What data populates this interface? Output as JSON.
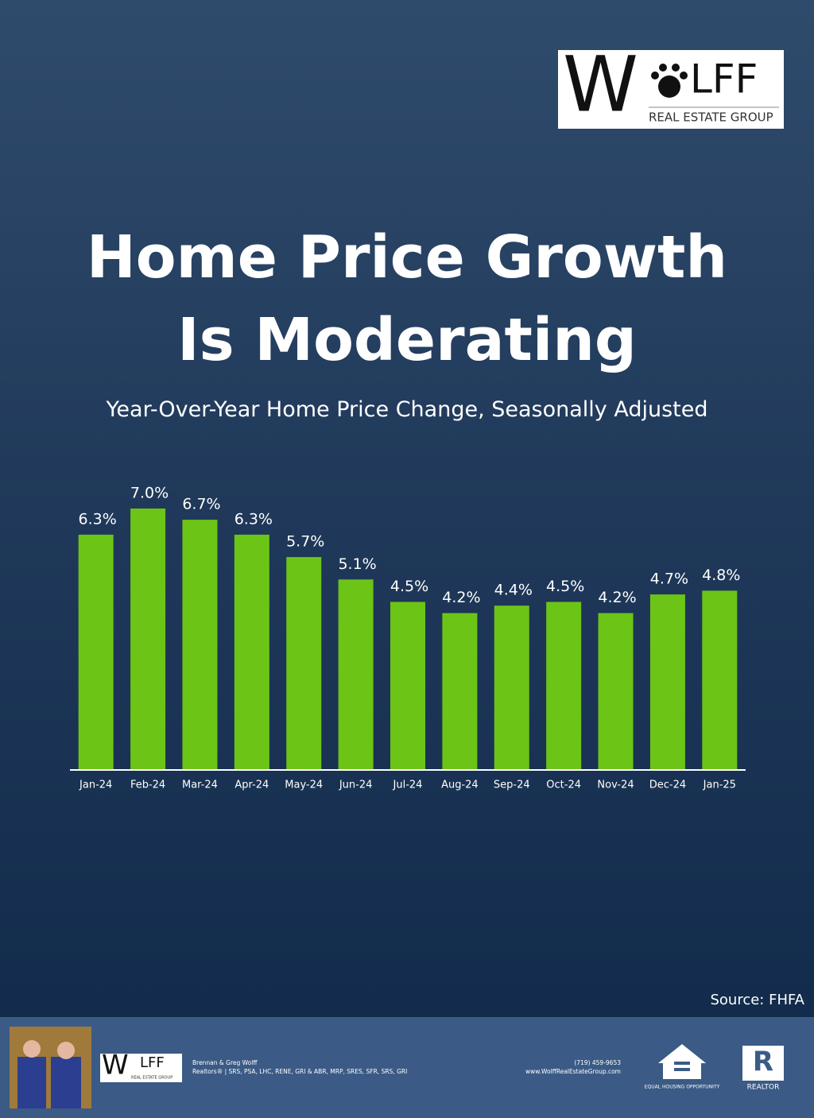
{
  "chart_data": {
    "type": "bar",
    "title": "Home Price Growth Is Moderating",
    "subtitle": "Year-Over-Year Home Price Change, Seasonally Adjusted",
    "categories": [
      "Jan-24",
      "Feb-24",
      "Mar-24",
      "Apr-24",
      "May-24",
      "Jun-24",
      "Jul-24",
      "Aug-24",
      "Sep-24",
      "Oct-24",
      "Nov-24",
      "Dec-24",
      "Jan-25"
    ],
    "values": [
      6.3,
      7.0,
      6.7,
      6.3,
      5.7,
      5.1,
      4.5,
      4.2,
      4.4,
      4.5,
      4.2,
      4.7,
      4.8
    ],
    "value_labels": [
      "6.3%",
      "7.0%",
      "6.7%",
      "6.3%",
      "5.7%",
      "5.1%",
      "4.5%",
      "4.2%",
      "4.4%",
      "4.5%",
      "4.2%",
      "4.7%",
      "4.8%"
    ],
    "color": "#6cc417",
    "source": "Source: FHFA"
  },
  "logo": {
    "first": "W",
    "rest": "LFF",
    "tagline": "REAL ESTATE GROUP"
  },
  "footer": {
    "names": "Brennan & Greg Wolff",
    "credentials": "Realtors® | SRS, PSA, LHC, RENE, GRI & ABR, MRP, SRES, SFR, SRS, GRI",
    "phone": "(719) 459-9653",
    "website": "www.WolffRealEstateGroup.com",
    "equal_housing": "EQUAL HOUSING OPPORTUNITY",
    "realtor": "REALTOR"
  }
}
